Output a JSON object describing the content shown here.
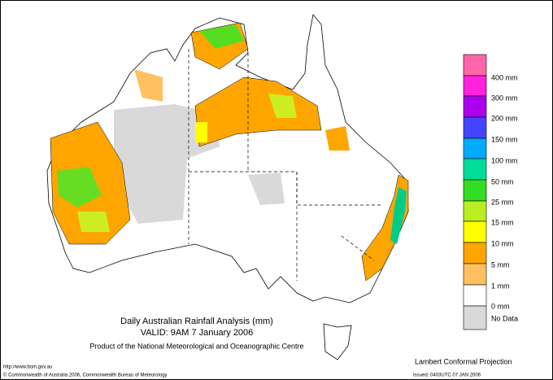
{
  "title": {
    "line1": "Daily Australian Rainfall Analysis (mm)",
    "line2": "VALID: 9AM  7 January 2006",
    "line3": "Product of the National Meteorological and Oceanographic Centre"
  },
  "projection": "Lambert Conformal Projection",
  "footer": {
    "url": "http://www.bom.gov.au",
    "copyright": "© Commonwealth of Australia 2006, Commonwealth Bureau of Meteorology",
    "issued": "Issued: 0403UTC 07 JAN 2006"
  },
  "legend": [
    "400 mm",
    "300 mm",
    "200 mm",
    "150 mm",
    "100 mm",
    "50 mm",
    "25 mm",
    "15 mm",
    "10 mm",
    "5 mm",
    "1 mm",
    "0 mm",
    "No Data"
  ]
}
